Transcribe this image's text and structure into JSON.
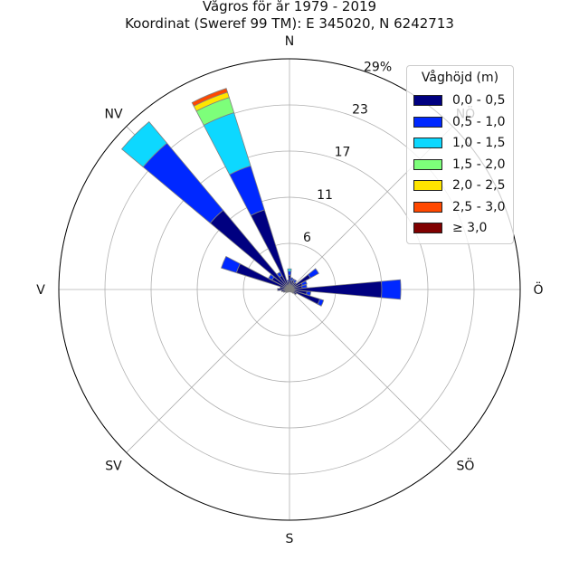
{
  "title": {
    "line1": "Vågros för år 1979 - 2019",
    "line2": "Koordinat (Sweref 99 TM): E 345020, N 6242713"
  },
  "chart_data": {
    "type": "windrose",
    "unit": "%",
    "radial_ticks": [
      "6",
      "11",
      "17",
      "23",
      "29%"
    ],
    "radial_tick_values": [
      5.8,
      11.6,
      17.4,
      23.2,
      29.0
    ],
    "radial_max": 29.0,
    "direction_labels": {
      "N": "N",
      "NE": "NÖ",
      "E": "Ö",
      "SE": "SÖ",
      "S": "S",
      "SW": "SV",
      "W": "V",
      "NW": "NV"
    },
    "sector_width_deg": 11.25,
    "legend": {
      "title": "Våghöjd (m)",
      "placement": "upper-right",
      "entries": [
        {
          "label": "0,0 - 0,5",
          "color": "#000080"
        },
        {
          "label": "0,5 - 1,0",
          "color": "#0028ff"
        },
        {
          "label": "1,0 - 1,5",
          "color": "#0dd8ff"
        },
        {
          "label": "1,5 - 2,0",
          "color": "#7dff7a"
        },
        {
          "label": "2,0 - 2,5",
          "color": "#ffe500"
        },
        {
          "label": "2,5 - 3,0",
          "color": "#ff4800"
        },
        {
          "label": "≥ 3,0",
          "color": "#800000"
        }
      ]
    },
    "sectors": [
      {
        "direction_deg": 0,
        "values": [
          1.8,
          0.5,
          0.3,
          0,
          0,
          0,
          0
        ]
      },
      {
        "direction_deg": 11.25,
        "values": [
          1.1,
          0.4,
          0,
          0,
          0,
          0,
          0
        ]
      },
      {
        "direction_deg": 22.5,
        "values": [
          1.2,
          0.2,
          0,
          0,
          0,
          0,
          0
        ]
      },
      {
        "direction_deg": 33.75,
        "values": [
          1.0,
          0.4,
          0,
          0,
          0,
          0,
          0
        ]
      },
      {
        "direction_deg": 45,
        "values": [
          1.1,
          0,
          0,
          0,
          0,
          0,
          0
        ]
      },
      {
        "direction_deg": 56.25,
        "values": [
          3.0,
          1.2,
          0,
          0,
          0,
          0,
          0
        ]
      },
      {
        "direction_deg": 67.5,
        "values": [
          1.7,
          0.6,
          0,
          0,
          0,
          0,
          0
        ]
      },
      {
        "direction_deg": 78.75,
        "values": [
          1.6,
          0.6,
          0,
          0,
          0,
          0,
          0
        ]
      },
      {
        "direction_deg": 90,
        "values": [
          11.6,
          2.4,
          0,
          0,
          0,
          0,
          0
        ]
      },
      {
        "direction_deg": 101.25,
        "values": [
          2.2,
          0.5,
          0,
          0,
          0,
          0,
          0
        ]
      },
      {
        "direction_deg": 112.5,
        "values": [
          4.0,
          0.5,
          0,
          0,
          0,
          0,
          0
        ]
      },
      {
        "direction_deg": 123.75,
        "values": [
          1.0,
          0,
          0,
          0,
          0,
          0,
          0
        ]
      },
      {
        "direction_deg": 135,
        "values": [
          0.6,
          0,
          0,
          0,
          0,
          0,
          0
        ]
      },
      {
        "direction_deg": 146.25,
        "values": [
          0.4,
          0,
          0,
          0,
          0,
          0,
          0
        ]
      },
      {
        "direction_deg": 157.5,
        "values": [
          0.3,
          0,
          0,
          0,
          0,
          0,
          0
        ]
      },
      {
        "direction_deg": 168.75,
        "values": [
          0.3,
          0,
          0,
          0,
          0,
          0,
          0
        ]
      },
      {
        "direction_deg": 180,
        "values": [
          0.3,
          0,
          0,
          0,
          0,
          0,
          0
        ]
      },
      {
        "direction_deg": 191.25,
        "values": [
          0.3,
          0,
          0,
          0,
          0,
          0,
          0
        ]
      },
      {
        "direction_deg": 202.5,
        "values": [
          0.3,
          0,
          0,
          0,
          0,
          0,
          0
        ]
      },
      {
        "direction_deg": 213.75,
        "values": [
          0.4,
          0,
          0,
          0,
          0,
          0,
          0
        ]
      },
      {
        "direction_deg": 225,
        "values": [
          0.5,
          0,
          0,
          0,
          0,
          0,
          0
        ]
      },
      {
        "direction_deg": 236.25,
        "values": [
          0.6,
          0,
          0,
          0,
          0,
          0,
          0
        ]
      },
      {
        "direction_deg": 247.5,
        "values": [
          0.8,
          0,
          0,
          0,
          0,
          0,
          0
        ]
      },
      {
        "direction_deg": 258.75,
        "values": [
          1.0,
          0,
          0,
          0,
          0,
          0,
          0
        ]
      },
      {
        "direction_deg": 270,
        "values": [
          1.5,
          0,
          0,
          0,
          0,
          0,
          0
        ]
      },
      {
        "direction_deg": 281.25,
        "values": [
          1.2,
          0,
          0,
          0,
          0,
          0,
          0
        ]
      },
      {
        "direction_deg": 292.5,
        "values": [
          7.0,
          2.0,
          0,
          0,
          0,
          0,
          0
        ]
      },
      {
        "direction_deg": 303.75,
        "values": [
          2.5,
          0.5,
          0,
          0,
          0,
          0,
          0
        ]
      },
      {
        "direction_deg": 315,
        "values": [
          13.0,
          11.0,
          3.5,
          0,
          0,
          0,
          0
        ]
      },
      {
        "direction_deg": 326.25,
        "values": [
          2.0,
          0.5,
          0,
          0,
          0,
          0,
          0
        ]
      },
      {
        "direction_deg": 337.5,
        "values": [
          10.5,
          5.8,
          7.0,
          2.0,
          0.7,
          0.5,
          0
        ]
      },
      {
        "direction_deg": 348.75,
        "values": [
          1.0,
          0.2,
          0,
          0,
          0,
          0,
          0
        ]
      }
    ]
  }
}
